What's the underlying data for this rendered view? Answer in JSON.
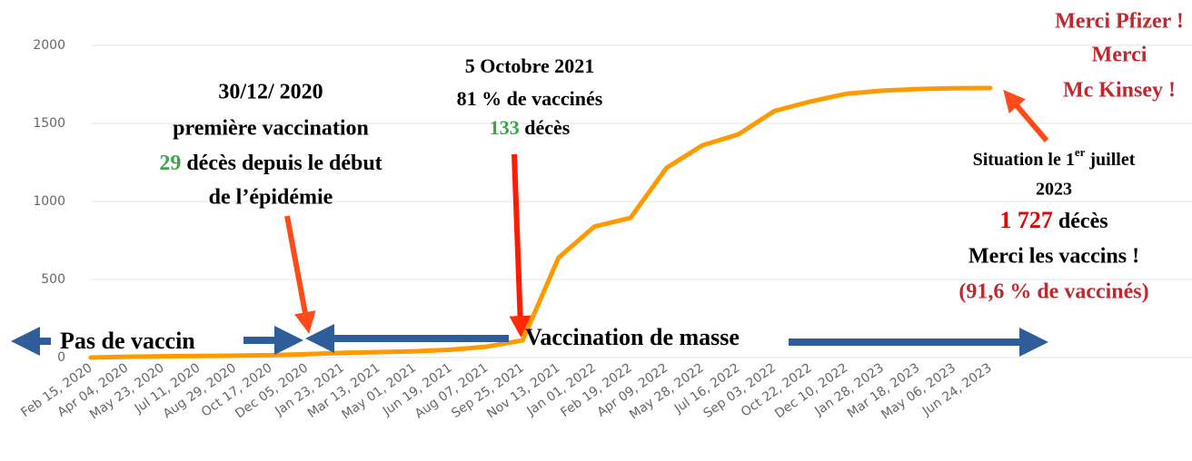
{
  "chart_data": {
    "type": "line",
    "categories": [
      "Feb 15, 2020",
      "Apr 04, 2020",
      "May 23, 2020",
      "Jul 11, 2020",
      "Aug 29, 2020",
      "Oct 17, 2020",
      "Dec 05, 2020",
      "Jan 23, 2021",
      "Mar 13, 2021",
      "May 01, 2021",
      "Jun 19, 2021",
      "Aug 07, 2021",
      "Sep 25, 2021",
      "Nov 13, 2021",
      "Jan 01, 2022",
      "Feb 19, 2022",
      "Apr 09, 2022",
      "May 28, 2022",
      "Jul 16, 2022",
      "Sep 03, 2022",
      "Oct 22, 2022",
      "Dec 10, 2022",
      "Jan 28, 2023",
      "Mar 18, 2023",
      "May 06, 2023",
      "Jun 24, 2023"
    ],
    "series": [
      {
        "name": "décès",
        "color": "#ff9900",
        "values": [
          0,
          5,
          8,
          10,
          12,
          15,
          22,
          30,
          35,
          40,
          50,
          70,
          110,
          640,
          840,
          895,
          1215,
          1360,
          1430,
          1580,
          1640,
          1690,
          1710,
          1720,
          1725,
          1727
        ]
      }
    ],
    "ylim": [
      0,
      2000
    ],
    "yticks": [
      0,
      500,
      1000,
      1500,
      2000
    ],
    "grid": true,
    "annotations": {
      "first": [
        "30/12/ 2020",
        "première vaccination",
        "29",
        " décès depuis le début",
        "de l’épidémie"
      ],
      "october": [
        "5 Octobre 2021",
        "81 % de  vaccinés",
        "133",
        " décès"
      ],
      "merci": [
        "Merci Pfizer !",
        "Merci",
        "Mc Kinsey !"
      ],
      "situation": [
        "Situation le 1",
        "er",
        " juillet",
        "2023",
        "1 727",
        "  décès",
        "Merci les vaccins !",
        "(91,6 % de vaccinés)"
      ],
      "no_vaccine": "Pas de vaccin",
      "mass": "Vaccination de masse"
    }
  }
}
